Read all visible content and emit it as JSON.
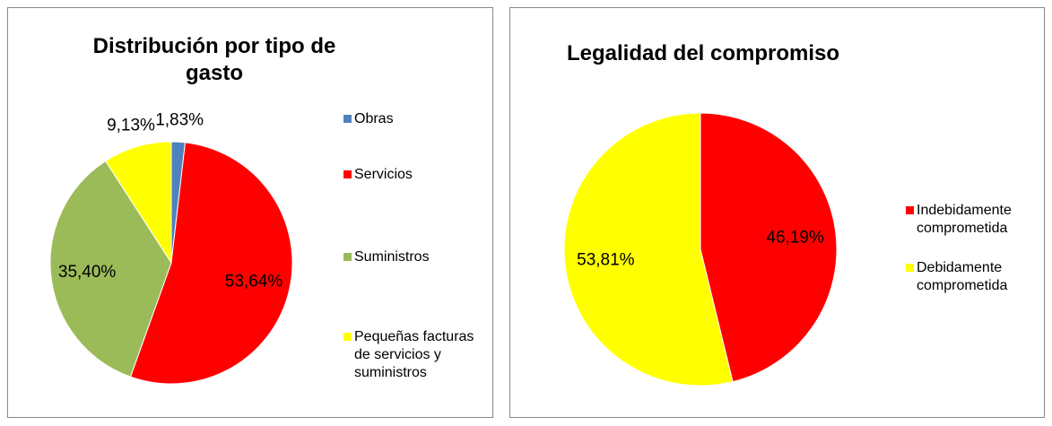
{
  "chart_data": [
    {
      "type": "pie",
      "title": "Distribución por tipo de gasto",
      "categories": [
        "Obras",
        "Servicios",
        "Suministros",
        "Pequeñas facturas de servicios y suministros"
      ],
      "values": [
        1.83,
        53.64,
        35.4,
        9.13
      ],
      "value_labels": [
        "1,83%",
        "53,64%",
        "35,40%",
        "9,13%"
      ],
      "colors": [
        "#4f81bd",
        "#ff0000",
        "#9bbb59",
        "#ffff00"
      ],
      "legend": "right"
    },
    {
      "type": "pie",
      "title": "Legalidad del compromiso",
      "categories": [
        "Indebidamente comprometida",
        "Debidamente comprometida"
      ],
      "values": [
        46.19,
        53.81
      ],
      "value_labels": [
        "46,19%",
        "53,81%"
      ],
      "colors": [
        "#ff0000",
        "#ffff00"
      ],
      "legend": "right"
    }
  ]
}
